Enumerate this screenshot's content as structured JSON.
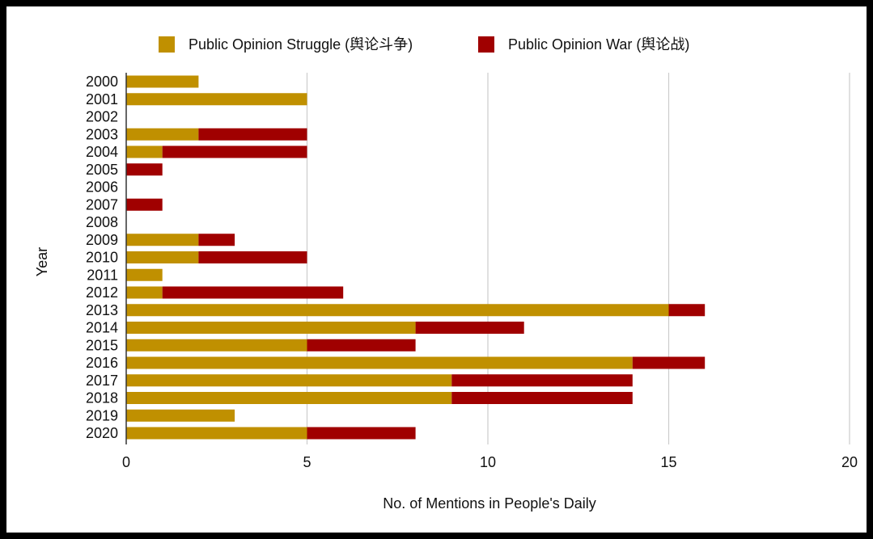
{
  "chart_data": {
    "type": "bar",
    "orientation": "horizontal",
    "stacked": true,
    "categories": [
      "2000",
      "2001",
      "2002",
      "2003",
      "2004",
      "2005",
      "2006",
      "2007",
      "2008",
      "2009",
      "2010",
      "2011",
      "2012",
      "2013",
      "2014",
      "2015",
      "2016",
      "2017",
      "2018",
      "2019",
      "2020"
    ],
    "series": [
      {
        "name": "Public Opinion Struggle (舆论斗争)",
        "color": "#c09000",
        "values": [
          2,
          5,
          0,
          2,
          1,
          0,
          0,
          0,
          0,
          2,
          2,
          1,
          1,
          15,
          8,
          5,
          14,
          9,
          9,
          3,
          5
        ]
      },
      {
        "name": "Public Opinion War (舆论战)",
        "color": "#a00000",
        "values": [
          0,
          0,
          0,
          3,
          4,
          1,
          0,
          1,
          0,
          1,
          3,
          0,
          5,
          1,
          3,
          3,
          2,
          5,
          5,
          0,
          3
        ]
      }
    ],
    "xlabel": "No. of Mentions in People's Daily",
    "ylabel": "Year",
    "xlim": [
      0,
      20
    ],
    "xticks": [
      "0",
      "5",
      "10",
      "15",
      "20"
    ],
    "grid": true,
    "legend_position": "top"
  }
}
